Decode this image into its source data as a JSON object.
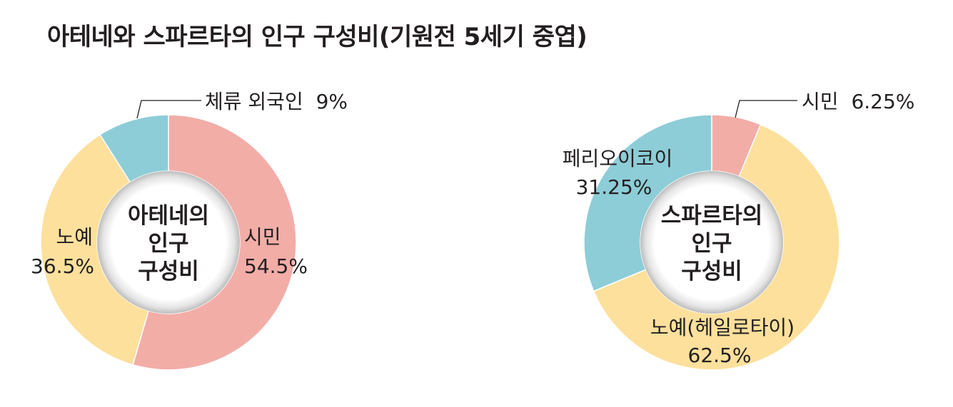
{
  "title": "아테네와 스파르타의 인구 구성비(기원전 5세기 중엽)",
  "chart_data": [
    {
      "type": "pie",
      "style": "donut",
      "center_label": [
        "아테네의",
        "인구",
        "구성비"
      ],
      "slices": [
        {
          "name": "시민",
          "value": 54.5,
          "value_label": "54.5%",
          "color": "#f2ada7"
        },
        {
          "name": "노예",
          "value": 36.5,
          "value_label": "36.5%",
          "color": "#fde09c"
        },
        {
          "name": "체류 외국인",
          "value": 9,
          "value_label": "9%",
          "color": "#8dcdd7"
        }
      ]
    },
    {
      "type": "pie",
      "style": "donut",
      "center_label": [
        "스파르타의",
        "인구",
        "구성비"
      ],
      "slices": [
        {
          "name": "시민",
          "value": 6.25,
          "value_label": "6.25%",
          "color": "#f2ada7"
        },
        {
          "name": "노예(헤일로타이)",
          "value": 62.5,
          "value_label": "62.5%",
          "color": "#fde09c"
        },
        {
          "name": "페리오이코이",
          "value": 31.25,
          "value_label": "31.25%",
          "color": "#8dcdd7"
        }
      ]
    }
  ]
}
